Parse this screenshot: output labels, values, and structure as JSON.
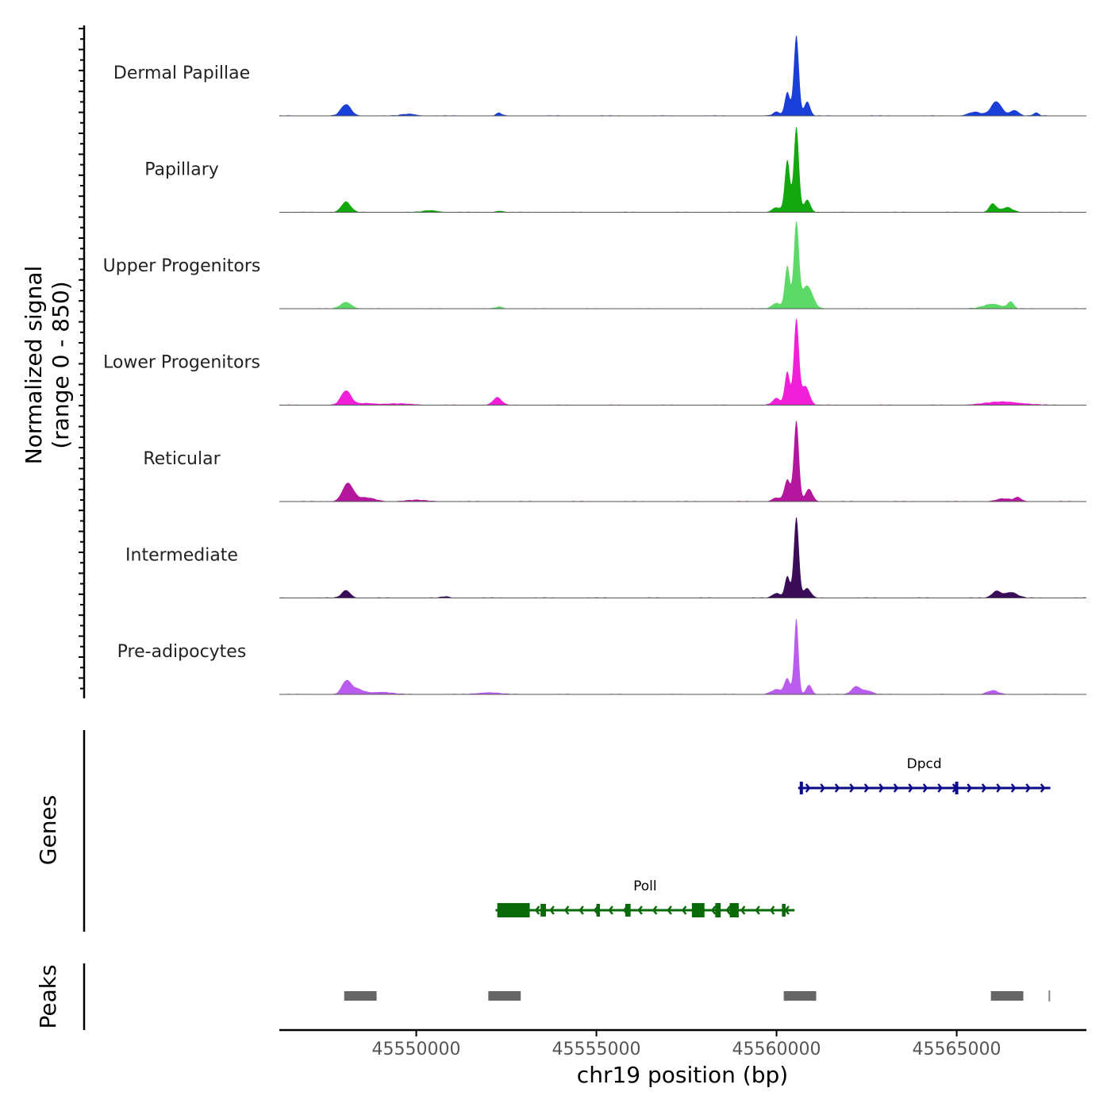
{
  "chart_data": {
    "type": "area",
    "title": "",
    "ylabel_line1": "Normalized signal",
    "ylabel_line2": "(range 0 - 850)",
    "xlabel": "chr19 position (bp)",
    "xlim": [
      45546200,
      45568600
    ],
    "ylim": [
      0,
      850
    ],
    "xticks": [
      45550000,
      45555000,
      45560000,
      45565000
    ],
    "xtick_labels": [
      "45550000",
      "45555000",
      "45560000",
      "45565000"
    ],
    "tracks": [
      {
        "name": "Dermal Papillae",
        "color": "#1a3fd9",
        "peaks": [
          [
            45548050,
            120,
            140
          ],
          [
            45549800,
            20,
            200
          ],
          [
            45552300,
            30,
            80
          ],
          [
            45560000,
            40,
            100
          ],
          [
            45560300,
            250,
            70
          ],
          [
            45560550,
            850,
            70
          ],
          [
            45560850,
            150,
            80
          ],
          [
            45565500,
            40,
            180
          ],
          [
            45566100,
            150,
            150
          ],
          [
            45566600,
            60,
            120
          ],
          [
            45567200,
            30,
            80
          ]
        ]
      },
      {
        "name": "Papillary",
        "color": "#12a80e",
        "peaks": [
          [
            45548050,
            110,
            130
          ],
          [
            45550400,
            20,
            200
          ],
          [
            45552300,
            15,
            100
          ],
          [
            45560000,
            50,
            120
          ],
          [
            45560300,
            550,
            70
          ],
          [
            45560550,
            900,
            70
          ],
          [
            45560850,
            130,
            90
          ],
          [
            45566000,
            90,
            100
          ],
          [
            45566400,
            50,
            150
          ]
        ]
      },
      {
        "name": "Upper Progenitors",
        "color": "#5cd966",
        "peaks": [
          [
            45548050,
            70,
            150
          ],
          [
            45552300,
            20,
            100
          ],
          [
            45560000,
            60,
            120
          ],
          [
            45560300,
            450,
            70
          ],
          [
            45560550,
            900,
            70
          ],
          [
            45560850,
            240,
            150
          ],
          [
            45566000,
            50,
            250
          ],
          [
            45566500,
            70,
            80
          ]
        ]
      },
      {
        "name": "Lower Progenitors",
        "color": "#f21fd9",
        "peaks": [
          [
            45548050,
            150,
            140
          ],
          [
            45548600,
            20,
            250
          ],
          [
            45552250,
            80,
            120
          ],
          [
            45549500,
            15,
            400
          ],
          [
            45560000,
            70,
            110
          ],
          [
            45560300,
            350,
            70
          ],
          [
            45560550,
            900,
            70
          ],
          [
            45560800,
            200,
            110
          ],
          [
            45566300,
            35,
            500
          ]
        ]
      },
      {
        "name": "Reticular",
        "color": "#b5169e",
        "peaks": [
          [
            45548100,
            190,
            150
          ],
          [
            45548600,
            40,
            250
          ],
          [
            45550000,
            15,
            300
          ],
          [
            45560000,
            40,
            120
          ],
          [
            45560300,
            230,
            80
          ],
          [
            45560550,
            850,
            70
          ],
          [
            45560900,
            130,
            100
          ],
          [
            45566300,
            30,
            200
          ],
          [
            45566700,
            40,
            100
          ]
        ]
      },
      {
        "name": "Intermediate",
        "color": "#3b0c58",
        "peaks": [
          [
            45548050,
            80,
            120
          ],
          [
            45550800,
            15,
            100
          ],
          [
            45560000,
            50,
            110
          ],
          [
            45560300,
            230,
            70
          ],
          [
            45560550,
            850,
            70
          ],
          [
            45560850,
            100,
            100
          ],
          [
            45566100,
            70,
            120
          ],
          [
            45566500,
            60,
            180
          ]
        ]
      },
      {
        "name": "Pre-adipocytes",
        "color": "#bb5cf0",
        "peaks": [
          [
            45548050,
            120,
            120
          ],
          [
            45548300,
            60,
            200
          ],
          [
            45549000,
            25,
            300
          ],
          [
            45552000,
            20,
            300
          ],
          [
            45560000,
            50,
            150
          ],
          [
            45560300,
            160,
            80
          ],
          [
            45560550,
            800,
            60
          ],
          [
            45560900,
            100,
            80
          ],
          [
            45562200,
            80,
            120
          ],
          [
            45562500,
            40,
            150
          ],
          [
            45566000,
            40,
            150
          ]
        ]
      }
    ],
    "genes": [
      {
        "name": "Dpcd",
        "strand": "+",
        "start": 45560600,
        "end": 45567600,
        "color": "#0a0a8a"
      },
      {
        "name": "Poll",
        "strand": "-",
        "start": 45552200,
        "end": 45560500,
        "color": "#0a6a0a"
      }
    ],
    "peaks_track": [
      [
        45548000,
        45548900
      ],
      [
        45552000,
        45552900
      ],
      [
        45560200,
        45561100
      ],
      [
        45565950,
        45566850
      ],
      [
        45567550,
        45567580
      ]
    ]
  },
  "panel_labels": {
    "genes": "Genes",
    "peaks": "Peaks"
  }
}
